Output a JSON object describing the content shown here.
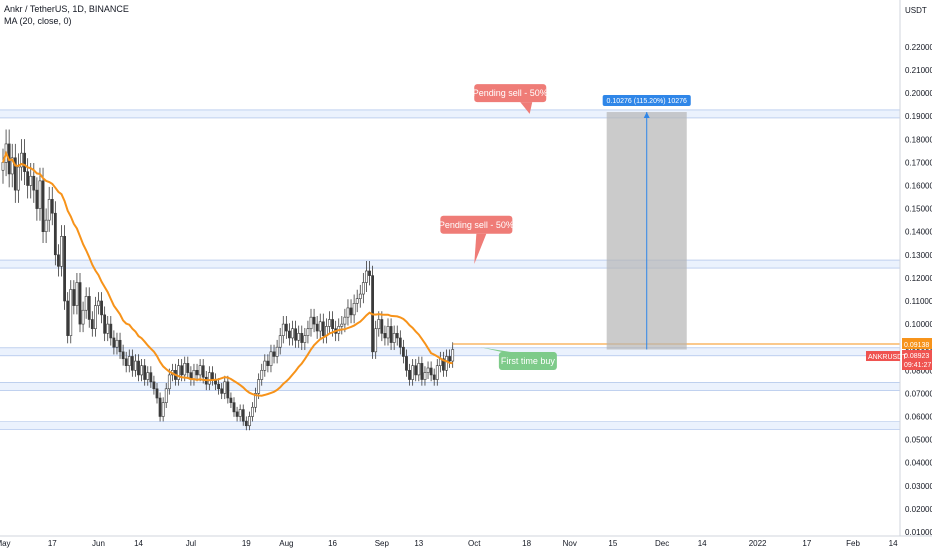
{
  "header": {
    "symbol_line": "Ankr / TetherUS, 1D, BINANCE",
    "indicator_line": "MA (20, close, 0)"
  },
  "chart_data": {
    "type": "candlestick",
    "title": "Ankr / TetherUS, 1D, BINANCE",
    "currency_label": "USDT",
    "indicator": "MA (20, close, 0)",
    "y_ticks": [
      0.01,
      0.02,
      0.03,
      0.04,
      0.05,
      0.06,
      0.07,
      0.08,
      0.09,
      0.1,
      0.11,
      0.12,
      0.13,
      0.14,
      0.15,
      0.16,
      0.17,
      0.18,
      0.19,
      0.2,
      0.21,
      0.22
    ],
    "y_tick_labels": [
      "0.01000",
      "0.02000",
      "0.03000",
      "0.04000",
      "0.05000",
      "0.06000",
      "0.07000",
      "0.08000",
      "0.09000",
      "0.10000",
      "0.11000",
      "0.12000",
      "0.13000",
      "0.14000",
      "0.15000",
      "0.16000",
      "0.17000",
      "0.18000",
      "0.19000",
      "0.20000",
      "0.21000",
      "0.22000"
    ],
    "x_ticks": [
      {
        "label": "May",
        "day": 0
      },
      {
        "label": "17",
        "day": 16
      },
      {
        "label": "Jun",
        "day": 31
      },
      {
        "label": "14",
        "day": 44
      },
      {
        "label": "Jul",
        "day": 61
      },
      {
        "label": "19",
        "day": 79
      },
      {
        "label": "Aug",
        "day": 92
      },
      {
        "label": "16",
        "day": 107
      },
      {
        "label": "Sep",
        "day": 123
      },
      {
        "label": "13",
        "day": 135
      },
      {
        "label": "Oct",
        "day": 153
      },
      {
        "label": "18",
        "day": 170
      },
      {
        "label": "Nov",
        "day": 184
      },
      {
        "label": "15",
        "day": 198
      },
      {
        "label": "Dec",
        "day": 214
      },
      {
        "label": "14",
        "day": 227
      },
      {
        "label": "2022",
        "day": 245
      },
      {
        "label": "17",
        "day": 261
      },
      {
        "label": "Feb",
        "day": 276
      },
      {
        "label": "14",
        "day": 289
      }
    ],
    "closes": [
      0.17,
      0.178,
      0.165,
      0.172,
      0.158,
      0.168,
      0.174,
      0.166,
      0.16,
      0.164,
      0.158,
      0.15,
      0.162,
      0.14,
      0.145,
      0.154,
      0.148,
      0.13,
      0.125,
      0.138,
      0.11,
      0.095,
      0.115,
      0.108,
      0.118,
      0.1,
      0.106,
      0.112,
      0.102,
      0.098,
      0.108,
      0.11,
      0.104,
      0.096,
      0.1,
      0.094,
      0.09,
      0.093,
      0.088,
      0.085,
      0.082,
      0.086,
      0.08,
      0.084,
      0.078,
      0.082,
      0.076,
      0.079,
      0.075,
      0.072,
      0.068,
      0.06,
      0.066,
      0.072,
      0.078,
      0.08,
      0.076,
      0.082,
      0.078,
      0.083,
      0.079,
      0.076,
      0.08,
      0.078,
      0.082,
      0.077,
      0.074,
      0.079,
      0.076,
      0.074,
      0.072,
      0.07,
      0.075,
      0.068,
      0.066,
      0.062,
      0.06,
      0.063,
      0.058,
      0.056,
      0.06,
      0.064,
      0.07,
      0.076,
      0.08,
      0.084,
      0.082,
      0.088,
      0.086,
      0.09,
      0.095,
      0.1,
      0.097,
      0.094,
      0.098,
      0.093,
      0.096,
      0.092,
      0.095,
      0.098,
      0.103,
      0.1,
      0.097,
      0.101,
      0.095,
      0.099,
      0.102,
      0.098,
      0.096,
      0.099,
      0.1,
      0.103,
      0.107,
      0.104,
      0.109,
      0.111,
      0.113,
      0.118,
      0.123,
      0.121,
      0.088,
      0.098,
      0.102,
      0.096,
      0.094,
      0.099,
      0.092,
      0.096,
      0.094,
      0.09,
      0.086,
      0.08,
      0.076,
      0.082,
      0.078,
      0.083,
      0.076,
      0.079,
      0.081,
      0.078,
      0.076,
      0.082,
      0.085,
      0.08,
      0.086,
      0.084,
      0.089
    ],
    "ma_series": "MA (20, close, 0)",
    "current_price": "0.08923",
    "ma_value": "0.09138",
    "countdown": "09:41:27",
    "ticker_tag": "ANKRUSDT",
    "horizontal_zones": [
      0.191,
      0.126,
      0.088,
      0.073,
      0.056
    ],
    "measure_box": {
      "label": "0.10276 (115.20%) 10276",
      "from_day": 196,
      "to_day": 222,
      "low": 0.089,
      "high": 0.1918
    },
    "callouts": [
      {
        "text": "Pending sell - 50%",
        "price": 0.2,
        "day": 171
      },
      {
        "text": "Pending sell - 50%",
        "price": 0.143,
        "day": 153
      },
      {
        "text": "First time buy",
        "price": 0.084,
        "day": 172
      }
    ]
  }
}
